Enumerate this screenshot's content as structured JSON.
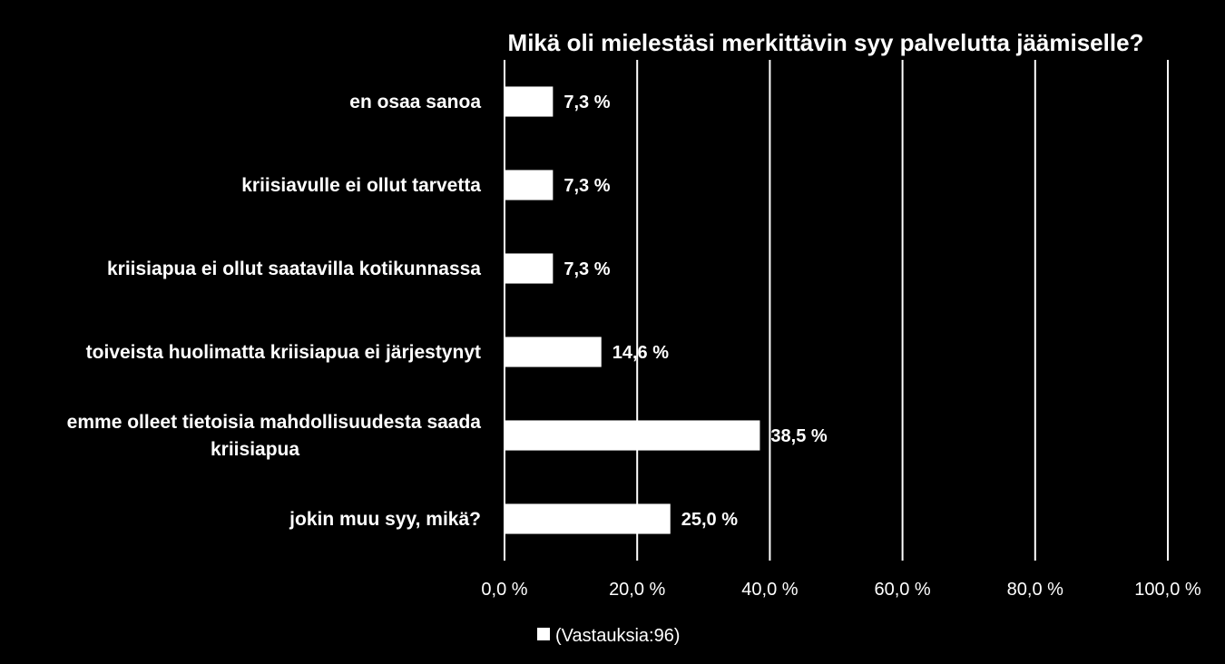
{
  "chart_data": {
    "type": "bar",
    "orientation": "horizontal",
    "title": "Mikä oli mielestäsi merkittävin syy palvelutta jäämiselle?",
    "categories": [
      [
        "en osaa sanoa"
      ],
      [
        "kriisiavulle ei ollut tarvetta"
      ],
      [
        "kriisiapua ei ollut saatavilla kotikunnassa"
      ],
      [
        "toiveista huolimatta kriisiapua ei järjestynyt"
      ],
      [
        "emme olleet tietoisia mahdollisuudesta saada",
        "kriisiapua"
      ],
      [
        "jokin muu syy, mikä?"
      ]
    ],
    "series": [
      {
        "name": "(Vastauksia:96)",
        "values": [
          7.3,
          7.3,
          7.3,
          14.6,
          38.5,
          25.0
        ],
        "labels": [
          "7,3 %",
          "7,3 %",
          "7,3 %",
          "14,6 %",
          "38,5 %",
          "25,0 %"
        ]
      }
    ],
    "xlim": [
      0,
      100
    ],
    "xticks": [
      0,
      20,
      40,
      60,
      80,
      100
    ],
    "xtick_labels": [
      "0,0 %",
      "20,0 %",
      "40,0 %",
      "60,0 %",
      "80,0 %",
      "100,0 %"
    ],
    "grid": true,
    "legend_position": "bottom",
    "colors": {
      "background": "#000000",
      "bar": "#ffffff",
      "text": "#ffffff",
      "grid": "#ffffff"
    }
  }
}
